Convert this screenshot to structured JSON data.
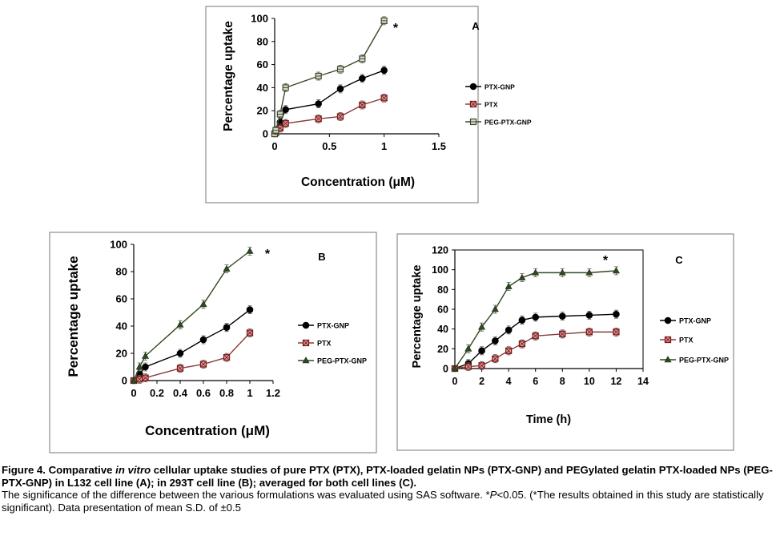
{
  "chart_data": [
    {
      "panel": "A",
      "type": "line",
      "panel_label": "A",
      "xlabel": "Concentration (μM)",
      "ylabel": "Percentage uptake",
      "xlim": [
        0,
        1.5
      ],
      "ylim": [
        0,
        100
      ],
      "xticks": [
        "0",
        "0.5",
        "1",
        "1.5"
      ],
      "yticks": [
        "0",
        "20",
        "40",
        "60",
        "80",
        "100"
      ],
      "annotation": "*",
      "legend_position": "right",
      "x": [
        0,
        0.01,
        0.05,
        0.1,
        0.4,
        0.6,
        0.8,
        1
      ],
      "series": [
        {
          "name": "PTX-GNP",
          "marker": "circle",
          "values": [
            0,
            2,
            10,
            21,
            26,
            39,
            48,
            55
          ]
        },
        {
          "name": "PTX",
          "marker": "square",
          "values": [
            0,
            1,
            5,
            9,
            13,
            15,
            25,
            31
          ]
        },
        {
          "name": "PEG-PTX-GNP",
          "marker": "square-line",
          "values": [
            0,
            3,
            17,
            40,
            50,
            56,
            65,
            98
          ]
        }
      ]
    },
    {
      "panel": "B",
      "type": "line",
      "panel_label": "B",
      "xlabel": "Concentration (μM)",
      "ylabel": "Percentage uptake",
      "xlim": [
        0,
        1.2
      ],
      "ylim": [
        0,
        100
      ],
      "xticks": [
        "0",
        "0.2",
        "0.4",
        "0.6",
        "0.8",
        "1",
        "1.2"
      ],
      "yticks": [
        "0",
        "20",
        "40",
        "60",
        "80",
        "100"
      ],
      "annotation": "*",
      "legend_position": "right",
      "x": [
        0,
        0.05,
        0.1,
        0.4,
        0.6,
        0.8,
        1
      ],
      "series": [
        {
          "name": "PTX-GNP",
          "marker": "circle",
          "values": [
            0,
            5,
            10,
            20,
            30,
            39,
            52
          ]
        },
        {
          "name": "PTX",
          "marker": "square",
          "values": [
            0,
            1,
            2,
            9,
            12,
            17,
            35
          ]
        },
        {
          "name": "PEG-PTX-GNP",
          "marker": "triangle",
          "values": [
            0,
            10,
            18,
            41,
            56,
            82,
            95
          ]
        }
      ]
    },
    {
      "panel": "C",
      "type": "line",
      "panel_label": "C",
      "xlabel": "Time (h)",
      "ylabel": "Percentage uptake",
      "xlim": [
        0,
        14
      ],
      "ylim": [
        0,
        120
      ],
      "xticks": [
        "0",
        "2",
        "4",
        "6",
        "8",
        "10",
        "12",
        "14"
      ],
      "yticks": [
        "0",
        "20",
        "40",
        "60",
        "80",
        "100",
        "120"
      ],
      "annotation": "*",
      "legend_position": "right",
      "x": [
        0,
        1,
        2,
        3,
        4,
        5,
        6,
        8,
        10,
        12
      ],
      "series": [
        {
          "name": "PTX-GNP",
          "marker": "circle",
          "values": [
            0,
            5,
            18,
            28,
            39,
            49,
            52,
            53,
            54,
            55
          ]
        },
        {
          "name": "PTX",
          "marker": "square",
          "values": [
            0,
            2,
            3,
            10,
            18,
            25,
            33,
            35,
            37,
            37
          ]
        },
        {
          "name": "PEG-PTX-GNP",
          "marker": "triangle",
          "values": [
            0,
            20,
            42,
            60,
            83,
            92,
            97,
            97,
            97,
            99
          ]
        }
      ]
    }
  ],
  "caption": {
    "figure_label": "Figure 4. Comparative ",
    "italic_in_vitro": "in vitro",
    "line1_rest": " cellular uptake studies of pure PTX (PTX), PTX-loaded gelatin NPs (PTX-GNP) and PEGylated gelatin PTX-loaded NPs (PEG-PTX-GNP) in L132 cell line (A); in 293T cell line (B); averaged for both cell lines (C).",
    "line2_a": "The significance of the difference between the various formulations was evaluated using SAS software. *",
    "line2_p": "P",
    "line2_b": "<0.05. (*The results obtained in this study are statistically significant). Data presentation of mean S.D. of ±0.5"
  }
}
